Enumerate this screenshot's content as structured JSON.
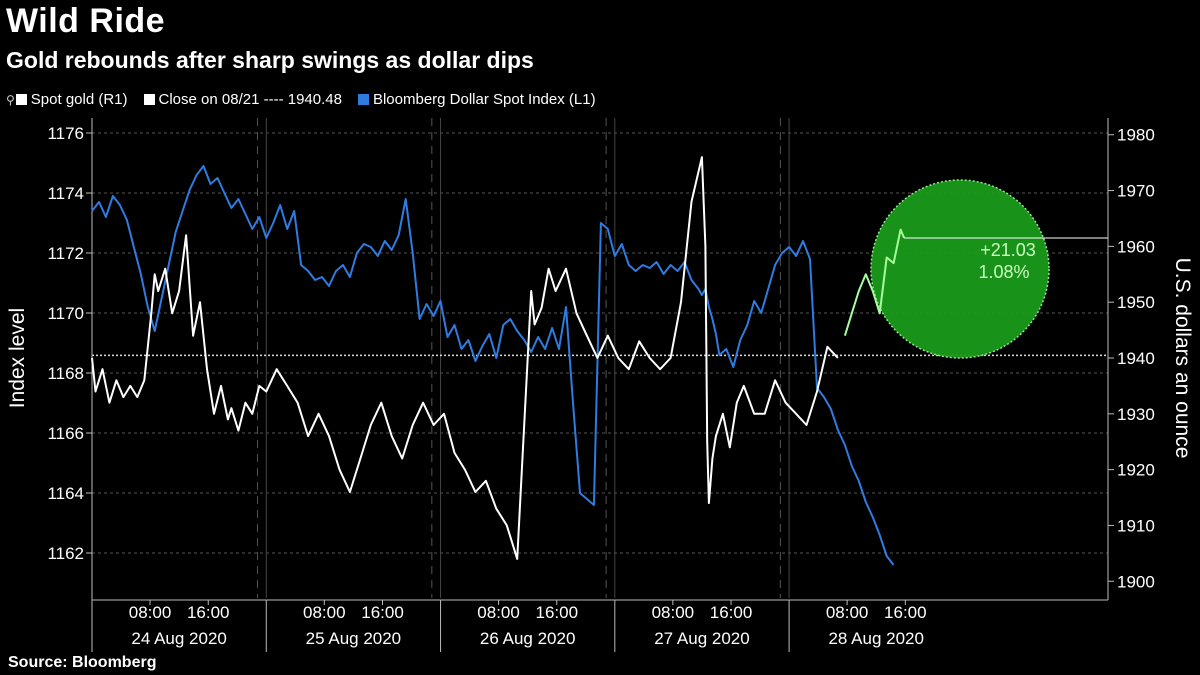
{
  "header": {
    "title": "Wild Ride",
    "subtitle": "Gold rebounds after sharp swings as dollar dips"
  },
  "legend": {
    "pin_glyph": "⚲",
    "spot_gold": "Spot gold (R1)",
    "close": "Close on 08/21 ---- 1940.48",
    "dollar": "Bloomberg Dollar Spot Index (L1)"
  },
  "source": "Source: Bloomberg",
  "colors": {
    "gold_line": "#ffffff",
    "dollar_line": "#2f7ce0",
    "highlight_fill": "#1a9a1a",
    "highlight_stroke": "#8de88d",
    "highlight_line": "#a6ff9c",
    "grid": "#555555"
  },
  "chart_data": {
    "type": "line",
    "left_axis": {
      "label": "Index level",
      "ticks": [
        1162,
        1164,
        1166,
        1168,
        1170,
        1172,
        1174,
        1176
      ],
      "range": [
        1160.5,
        1176.5
      ]
    },
    "right_axis": {
      "label": "U.S. dollars an ounce",
      "ticks": [
        1900,
        1910,
        1920,
        1930,
        1940,
        1950,
        1960,
        1970,
        1980
      ],
      "range": [
        1897,
        1983
      ]
    },
    "x_range": [
      0,
      5.83
    ],
    "time_ticks": [
      {
        "x": 0.333,
        "label": "08:00"
      },
      {
        "x": 0.667,
        "label": "16:00"
      },
      {
        "x": 1.333,
        "label": "08:00"
      },
      {
        "x": 1.667,
        "label": "16:00"
      },
      {
        "x": 2.333,
        "label": "08:00"
      },
      {
        "x": 2.667,
        "label": "16:00"
      },
      {
        "x": 3.333,
        "label": "08:00"
      },
      {
        "x": 3.667,
        "label": "16:00"
      },
      {
        "x": 4.333,
        "label": "08:00"
      },
      {
        "x": 4.667,
        "label": "16:00"
      }
    ],
    "date_labels": [
      {
        "x": 0.5,
        "label": "24 Aug 2020"
      },
      {
        "x": 1.5,
        "label": "25 Aug 2020"
      },
      {
        "x": 2.5,
        "label": "26 Aug 2020"
      },
      {
        "x": 3.5,
        "label": "27 Aug 2020"
      },
      {
        "x": 4.5,
        "label": "28 Aug 2020"
      }
    ],
    "day_boundaries": [
      1,
      2,
      3,
      4
    ],
    "dashed_day_markers": [
      0.95,
      1.95,
      2.95,
      3.95
    ],
    "reference_line": {
      "value": 1940.48,
      "axis": "right"
    },
    "annotation": {
      "change": "+21.03",
      "percent": "1.08%",
      "value": 1961.51
    },
    "series": [
      {
        "name": "Spot gold (R1)",
        "axis": "right",
        "x": [
          0.0,
          0.02,
          0.06,
          0.1,
          0.14,
          0.18,
          0.22,
          0.26,
          0.3,
          0.34,
          0.36,
          0.38,
          0.42,
          0.46,
          0.5,
          0.54,
          0.58,
          0.62,
          0.66,
          0.7,
          0.74,
          0.78,
          0.8,
          0.84,
          0.88,
          0.92,
          0.96,
          1.0,
          1.06,
          1.12,
          1.18,
          1.24,
          1.3,
          1.36,
          1.42,
          1.48,
          1.54,
          1.6,
          1.66,
          1.72,
          1.78,
          1.84,
          1.9,
          1.96,
          2.02,
          2.08,
          2.14,
          2.2,
          2.26,
          2.32,
          2.38,
          2.44,
          2.5,
          2.52,
          2.54,
          2.58,
          2.62,
          2.66,
          2.72,
          2.78,
          2.84,
          2.9,
          2.96,
          3.02,
          3.08,
          3.14,
          3.2,
          3.26,
          3.32,
          3.38,
          3.44,
          3.5,
          3.52,
          3.53,
          3.54,
          3.56,
          3.58,
          3.62,
          3.66,
          3.7,
          3.74,
          3.8,
          3.86,
          3.92,
          3.98,
          4.04,
          4.1,
          4.16,
          4.22,
          4.28,
          4.32,
          4.36,
          4.4,
          4.44,
          4.48,
          4.52,
          4.56,
          4.6,
          4.64,
          4.66
        ],
        "y": [
          1940,
          1934,
          1938,
          1932,
          1936,
          1933,
          1935,
          1933,
          1936,
          1948,
          1955,
          1952,
          1956,
          1948,
          1952,
          1962,
          1944,
          1950,
          1938,
          1930,
          1935,
          1929,
          1931,
          1927,
          1932,
          1930,
          1935,
          1934,
          1938,
          1935,
          1932,
          1926,
          1930,
          1926,
          1920,
          1916,
          1922,
          1928,
          1932,
          1926,
          1922,
          1928,
          1932,
          1928,
          1930,
          1923,
          1920,
          1916,
          1918,
          1913,
          1910,
          1904,
          1940,
          1952,
          1946,
          1949,
          1956,
          1952,
          1956,
          1948,
          1944,
          1940,
          1944,
          1940,
          1938,
          1943,
          1940,
          1938,
          1940,
          1950,
          1968,
          1976,
          1960,
          1925,
          1914,
          1922,
          1926,
          1930,
          1924,
          1932,
          1935,
          1930,
          1930,
          1936,
          1932,
          1930,
          1928,
          1934,
          1942,
          1940,
          1944,
          1948,
          1952,
          1955,
          1952,
          1948,
          1958,
          1957,
          1963,
          1961.51
        ],
        "highlight_from": 4.3
      },
      {
        "name": "Bloomberg Dollar Spot Index (L1)",
        "axis": "left",
        "x": [
          0.0,
          0.04,
          0.08,
          0.12,
          0.16,
          0.2,
          0.24,
          0.28,
          0.32,
          0.36,
          0.4,
          0.44,
          0.48,
          0.52,
          0.56,
          0.6,
          0.64,
          0.68,
          0.72,
          0.76,
          0.8,
          0.84,
          0.88,
          0.92,
          0.96,
          1.0,
          1.04,
          1.08,
          1.12,
          1.16,
          1.2,
          1.24,
          1.28,
          1.32,
          1.36,
          1.4,
          1.44,
          1.48,
          1.52,
          1.56,
          1.6,
          1.64,
          1.68,
          1.72,
          1.76,
          1.8,
          1.84,
          1.88,
          1.92,
          1.96,
          2.0,
          2.04,
          2.08,
          2.12,
          2.16,
          2.2,
          2.24,
          2.28,
          2.32,
          2.36,
          2.4,
          2.44,
          2.48,
          2.52,
          2.56,
          2.6,
          2.64,
          2.68,
          2.72,
          2.76,
          2.8,
          2.84,
          2.88,
          2.92,
          2.96,
          3.0,
          3.04,
          3.08,
          3.12,
          3.16,
          3.2,
          3.24,
          3.28,
          3.32,
          3.36,
          3.4,
          3.44,
          3.48,
          3.5,
          3.52,
          3.54,
          3.56,
          3.58,
          3.6,
          3.64,
          3.68,
          3.72,
          3.76,
          3.8,
          3.84,
          3.88,
          3.92,
          3.96,
          4.0,
          4.04,
          4.08,
          4.12,
          4.16,
          4.2,
          4.24,
          4.28,
          4.32,
          4.36,
          4.4,
          4.44,
          4.48,
          4.52,
          4.56,
          4.6
        ],
        "y": [
          1173.4,
          1173.7,
          1173.2,
          1173.9,
          1173.6,
          1173.1,
          1172.2,
          1171.3,
          1170.2,
          1169.4,
          1170.5,
          1171.6,
          1172.7,
          1173.4,
          1174.1,
          1174.6,
          1174.9,
          1174.3,
          1174.5,
          1174.0,
          1173.5,
          1173.8,
          1173.3,
          1172.8,
          1173.2,
          1172.5,
          1173.0,
          1173.6,
          1172.8,
          1173.4,
          1171.6,
          1171.4,
          1171.1,
          1171.2,
          1170.9,
          1171.4,
          1171.6,
          1171.2,
          1172.0,
          1172.3,
          1172.2,
          1171.9,
          1172.4,
          1172.1,
          1172.6,
          1173.8,
          1172.0,
          1169.8,
          1170.3,
          1169.9,
          1170.4,
          1169.2,
          1169.6,
          1168.8,
          1169.1,
          1168.4,
          1168.9,
          1169.3,
          1168.5,
          1169.6,
          1169.8,
          1169.4,
          1169.1,
          1168.7,
          1169.2,
          1168.8,
          1169.5,
          1168.8,
          1170.2,
          1167.0,
          1164.0,
          1163.8,
          1163.6,
          1173.0,
          1172.8,
          1171.9,
          1172.3,
          1171.6,
          1171.4,
          1171.6,
          1171.5,
          1171.7,
          1171.3,
          1171.6,
          1171.4,
          1171.7,
          1171.1,
          1170.8,
          1170.6,
          1170.8,
          1170.2,
          1169.8,
          1169.3,
          1168.6,
          1168.8,
          1168.2,
          1169.1,
          1169.6,
          1170.4,
          1170.0,
          1170.8,
          1171.6,
          1172.0,
          1172.2,
          1171.9,
          1172.4,
          1171.8,
          1167.5,
          1167.2,
          1166.8,
          1166.1,
          1165.6,
          1164.9,
          1164.4,
          1163.7,
          1163.2,
          1162.6,
          1161.9,
          1161.6
        ]
      }
    ]
  }
}
